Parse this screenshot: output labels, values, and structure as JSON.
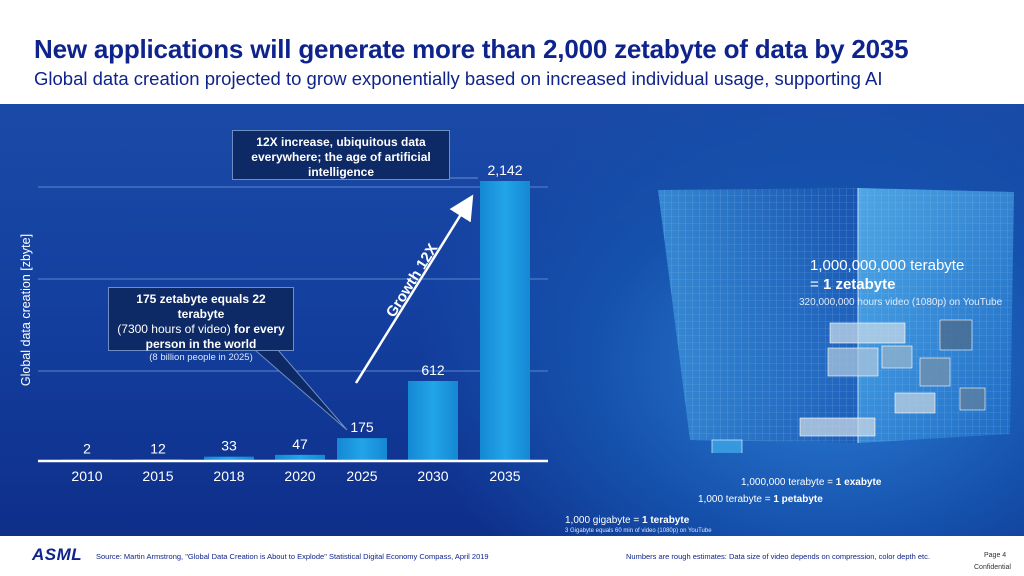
{
  "header": {
    "title": "New applications will generate more than 2,000 zetabyte of data by 2035",
    "subtitle": "Global data creation projected to grow exponentially based on increased individual usage, supporting AI"
  },
  "chart_data": {
    "type": "bar",
    "ylabel": "Global data creation [zbyte]",
    "xlabel": "",
    "categories": [
      "2010",
      "2015",
      "2018",
      "2020",
      "2025",
      "2030",
      "2035"
    ],
    "values": [
      2,
      12,
      33,
      47,
      175,
      612,
      2142
    ],
    "value_labels": [
      "2",
      "12",
      "33",
      "47",
      "175",
      "612",
      "2,142"
    ],
    "grid": true,
    "annotations": {
      "growth_arrow": "Growth 12X",
      "callout_2025": {
        "line1": "175 zetabyte equals 22 terabyte",
        "line2": "(7300 hours of video)",
        "line2b": " for every",
        "line3": "person in the world",
        "line4": "(8 billion people in 2025)"
      },
      "callout_2035": {
        "text": "12X increase, ubiquitous data everywhere; the age of artificial intelligence"
      }
    },
    "colors": {
      "bar": "#1a9be0",
      "bar_top": "#2fb3f0",
      "axis": "#ffffff",
      "grid": "#5a86cc"
    }
  },
  "cube": {
    "zetabyte_line1": "1,000,000,000 terabyte",
    "zetabyte_prefix": "= ",
    "zetabyte_line2": "1 zetabyte",
    "zetabyte_sub": "320,000,000 hours video (1080p) on YouTube",
    "exabyte_prefix": "1,000,000 terabyte = ",
    "exabyte_bold": "1 exabyte",
    "petabyte_prefix": "1,000 terabyte = ",
    "petabyte_bold": "1 petabyte",
    "gigabyte_prefix": "1,000 gigabyte = ",
    "gigabyte_bold": "1 terabyte",
    "gigabyte_sub": "3 Gigabyte equals 60 min of video (1080p) on YouTube"
  },
  "footer": {
    "logo": "ASML",
    "source": "Source: Martin Armstrong, \"Global Data Creation is About to Explode\" Statistical Digital Economy Compass, April 2019",
    "note": "Numbers are rough estimates: Data size of video depends on compression, color depth etc.",
    "page": "Page 4",
    "confidential": "Confidential"
  }
}
